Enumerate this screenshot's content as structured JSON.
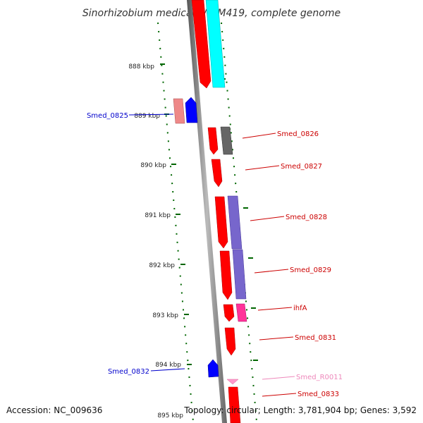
{
  "title": "Sinorhizobium medicae WSM419, complete genome",
  "footer": {
    "accession": "Accession: NC_009636",
    "topology": "Topology: circular; Length: 3,781,904 bp; Genes: 3,592"
  },
  "ticks": [
    "888 kbp",
    "889 kbp",
    "890 kbp",
    "891 kbp",
    "892 kbp",
    "893 kbp",
    "894 kbp",
    "895 kbp"
  ],
  "labels": [
    {
      "text": "Smed_0825",
      "color": "#0000cc"
    },
    {
      "text": "Smed_0826",
      "color": "#cc0000"
    },
    {
      "text": "Smed_0827",
      "color": "#cc0000"
    },
    {
      "text": "Smed_0828",
      "color": "#cc0000"
    },
    {
      "text": "Smed_0829",
      "color": "#cc0000"
    },
    {
      "text": "ihfA",
      "color": "#cc0000"
    },
    {
      "text": "Smed_0831",
      "color": "#cc0000"
    },
    {
      "text": "Smed_0832",
      "color": "#0000cc"
    },
    {
      "text": "Smed_R0011",
      "color": "#ee88bb"
    },
    {
      "text": "Smed_0833",
      "color": "#cc0000"
    }
  ],
  "colors": {
    "backbone": "#999999",
    "gene_forward": "#ff0000",
    "gene_reverse": "#0000ff",
    "cyan": "#00ffff",
    "purple": "#7766cc",
    "gray": "#666666",
    "pink": "#ff3399",
    "rrna": "#ff99cc",
    "salmon": "#ee8888",
    "dots": "#006600"
  }
}
